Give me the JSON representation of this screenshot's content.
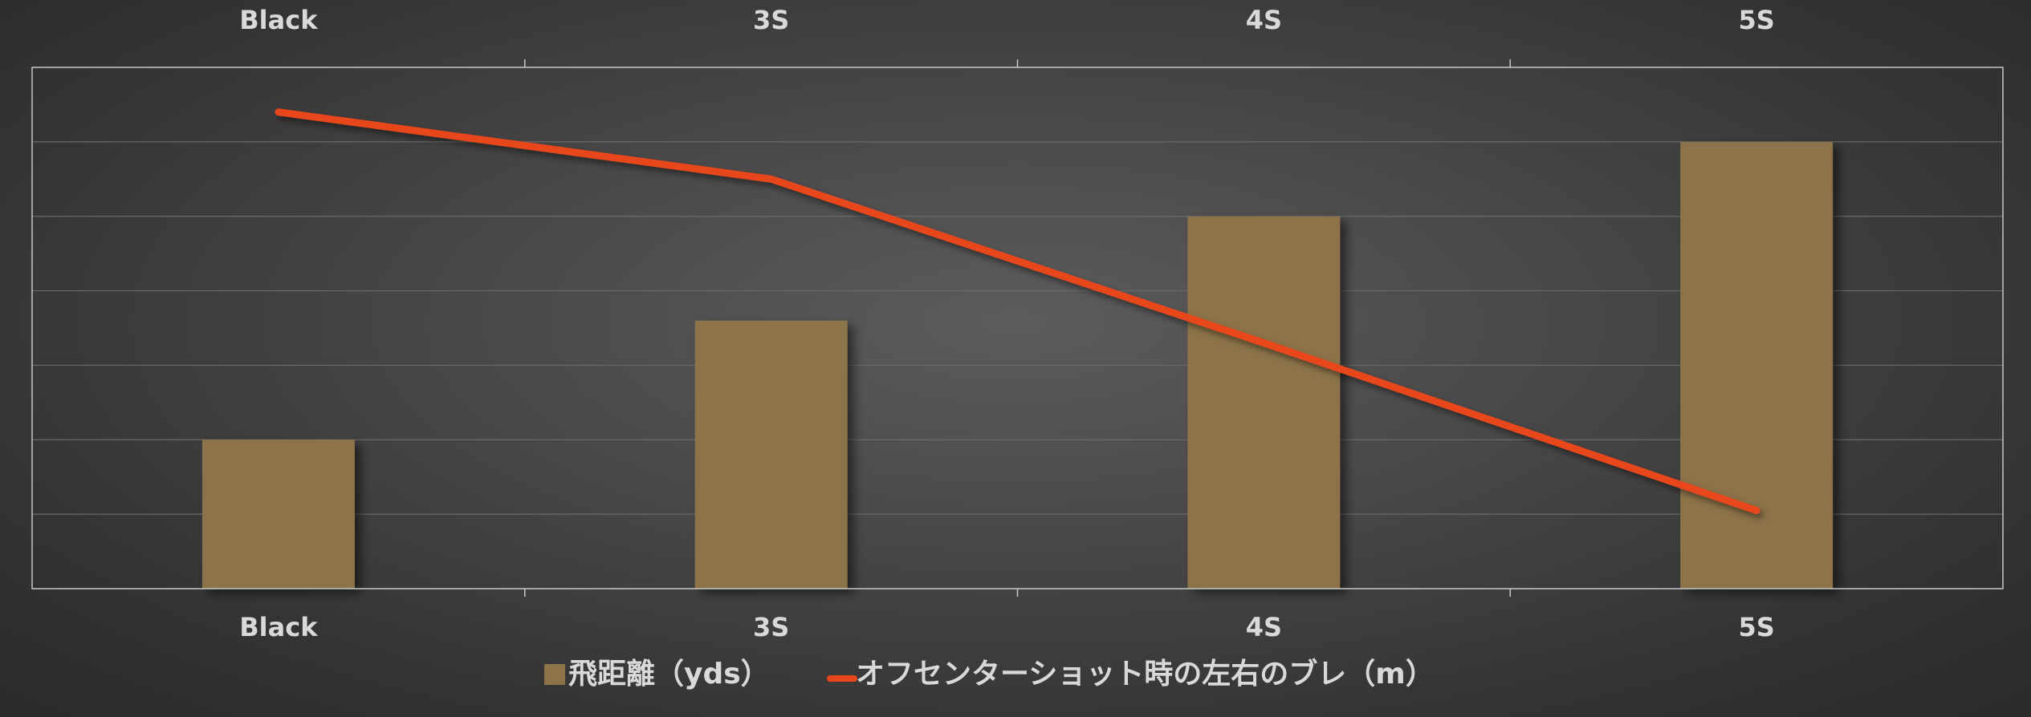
{
  "chart_data": {
    "type": "bar-line-combo",
    "categories": [
      "Black",
      "3S",
      "4S",
      "5S"
    ],
    "series": [
      {
        "name": "飛距離（yds）",
        "type": "bar",
        "values": [
          2,
          3.6,
          5,
          6
        ],
        "color": "#8c734a"
      },
      {
        "name": "オフセンターショット時の左右のブレ（m）",
        "type": "line",
        "values": [
          6.4,
          5.5,
          3.3,
          1.05
        ],
        "color": "#e8471c"
      }
    ],
    "ylim": [
      0,
      7
    ],
    "grid": true,
    "axis_tick_labels_top": true,
    "axis_tick_labels_bottom": true,
    "legend_position": "bottom"
  }
}
